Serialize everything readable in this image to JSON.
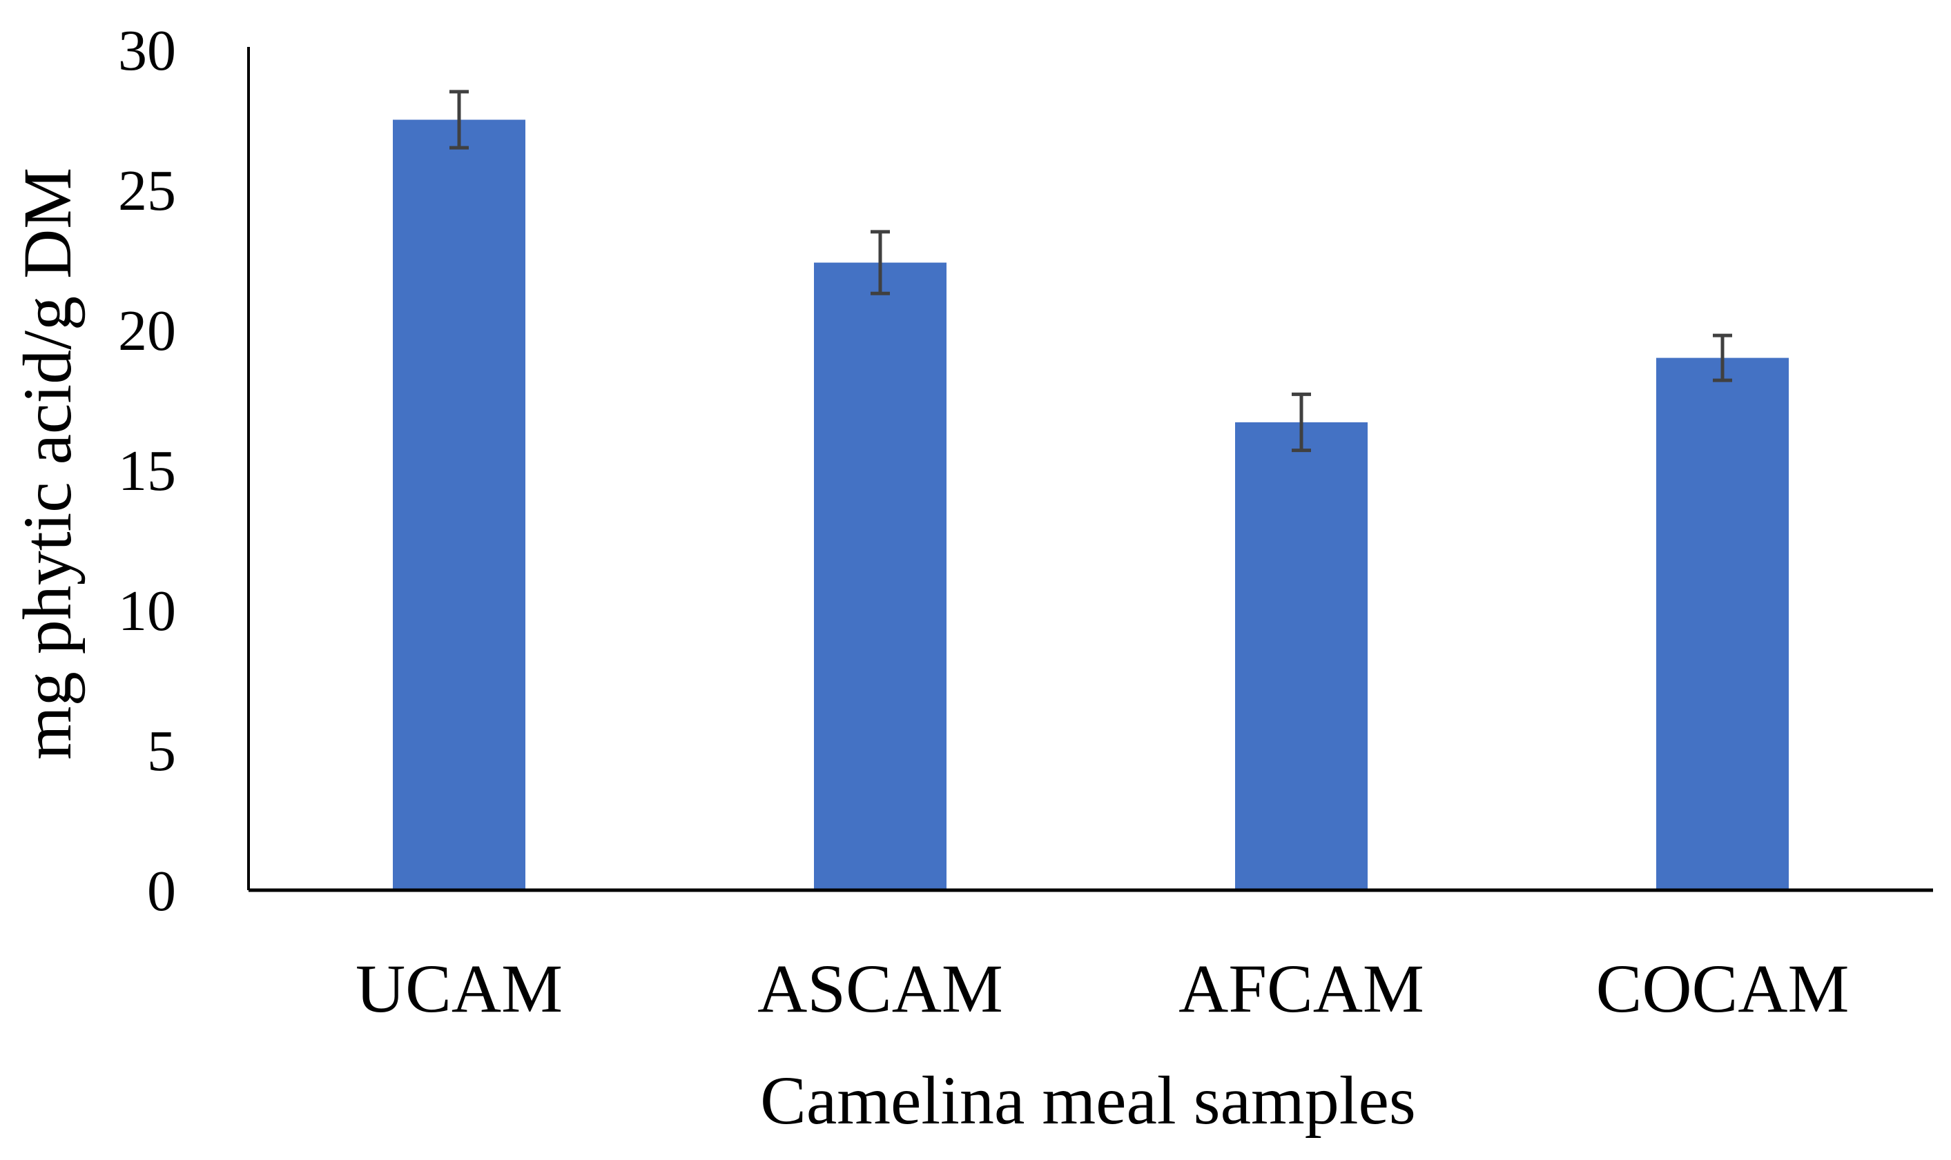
{
  "chart_data": {
    "type": "bar",
    "title": "",
    "xlabel": "Camelina meal samples",
    "ylabel": "mg phytic acid/g DM",
    "categories": [
      "UCAM",
      "ASCAM",
      "AFCAM",
      "COCAM"
    ],
    "values": [
      27.5,
      22.4,
      16.7,
      19.0
    ],
    "error": [
      1.0,
      1.1,
      1.0,
      0.8
    ],
    "ylim": [
      0,
      30
    ],
    "yticks": [
      "0",
      "5",
      "10",
      "15",
      "20",
      "25",
      "30"
    ],
    "grid": false,
    "legend": "none",
    "colors": {
      "bar": "#4472C4",
      "error_bar": "#404040",
      "axis": "#000000"
    }
  }
}
